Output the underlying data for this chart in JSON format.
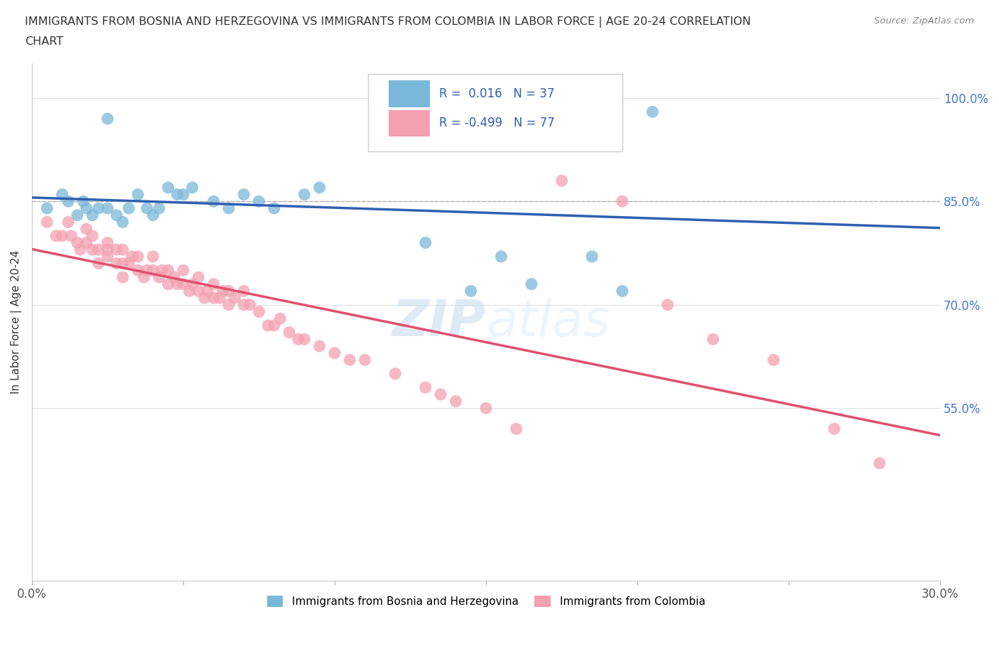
{
  "title_line1": "IMMIGRANTS FROM BOSNIA AND HERZEGOVINA VS IMMIGRANTS FROM COLOMBIA IN LABOR FORCE | AGE 20-24 CORRELATION",
  "title_line2": "CHART",
  "source": "Source: ZipAtlas.com",
  "ylabel": "In Labor Force | Age 20-24",
  "xlim": [
    0.0,
    0.3
  ],
  "ylim": [
    0.3,
    1.05
  ],
  "bosnia_color": "#7ab8d9",
  "colombia_color": "#f4a0b0",
  "bosnia_line_color": "#3060b0",
  "colombia_line_color": "#e05070",
  "grid_color": "#e0e0e0",
  "background_color": "#ffffff",
  "r_bosnia": 0.016,
  "n_bosnia": 37,
  "r_colombia": -0.499,
  "n_colombia": 77,
  "bosnia_x": [
    0.025,
    0.125,
    0.175,
    0.205,
    0.005,
    0.01,
    0.012,
    0.015,
    0.017,
    0.018,
    0.02,
    0.022,
    0.025,
    0.028,
    0.03,
    0.032,
    0.035,
    0.038,
    0.04,
    0.042,
    0.045,
    0.048,
    0.05,
    0.053,
    0.06,
    0.065,
    0.07,
    0.075,
    0.08,
    0.09,
    0.095,
    0.13,
    0.145,
    0.155,
    0.165,
    0.185,
    0.195
  ],
  "bosnia_y": [
    0.97,
    0.98,
    0.97,
    0.98,
    0.84,
    0.86,
    0.85,
    0.83,
    0.85,
    0.84,
    0.83,
    0.84,
    0.84,
    0.83,
    0.82,
    0.84,
    0.86,
    0.84,
    0.83,
    0.84,
    0.87,
    0.86,
    0.86,
    0.87,
    0.85,
    0.84,
    0.86,
    0.85,
    0.84,
    0.86,
    0.87,
    0.79,
    0.72,
    0.77,
    0.73,
    0.77,
    0.72
  ],
  "colombia_x": [
    0.005,
    0.008,
    0.01,
    0.012,
    0.013,
    0.015,
    0.016,
    0.018,
    0.018,
    0.02,
    0.02,
    0.022,
    0.022,
    0.025,
    0.025,
    0.025,
    0.028,
    0.028,
    0.03,
    0.03,
    0.03,
    0.032,
    0.033,
    0.035,
    0.035,
    0.037,
    0.038,
    0.04,
    0.04,
    0.042,
    0.043,
    0.045,
    0.045,
    0.047,
    0.048,
    0.05,
    0.05,
    0.052,
    0.053,
    0.055,
    0.055,
    0.057,
    0.058,
    0.06,
    0.06,
    0.062,
    0.063,
    0.065,
    0.065,
    0.067,
    0.07,
    0.07,
    0.072,
    0.075,
    0.078,
    0.08,
    0.082,
    0.085,
    0.088,
    0.09,
    0.095,
    0.1,
    0.105,
    0.11,
    0.12,
    0.13,
    0.135,
    0.14,
    0.15,
    0.16,
    0.175,
    0.195,
    0.21,
    0.225,
    0.245,
    0.265,
    0.28
  ],
  "colombia_y": [
    0.82,
    0.8,
    0.8,
    0.82,
    0.8,
    0.79,
    0.78,
    0.79,
    0.81,
    0.8,
    0.78,
    0.78,
    0.76,
    0.78,
    0.77,
    0.79,
    0.76,
    0.78,
    0.78,
    0.76,
    0.74,
    0.76,
    0.77,
    0.75,
    0.77,
    0.74,
    0.75,
    0.75,
    0.77,
    0.74,
    0.75,
    0.73,
    0.75,
    0.74,
    0.73,
    0.73,
    0.75,
    0.72,
    0.73,
    0.72,
    0.74,
    0.71,
    0.72,
    0.71,
    0.73,
    0.71,
    0.72,
    0.7,
    0.72,
    0.71,
    0.7,
    0.72,
    0.7,
    0.69,
    0.67,
    0.67,
    0.68,
    0.66,
    0.65,
    0.65,
    0.64,
    0.63,
    0.62,
    0.62,
    0.6,
    0.58,
    0.57,
    0.56,
    0.55,
    0.52,
    0.88,
    0.85,
    0.7,
    0.65,
    0.62,
    0.52,
    0.47
  ],
  "watermark_zip": "ZIP",
  "watermark_atlas": "atlas",
  "hline_y": 0.85,
  "hline_color": "#b0b0b0",
  "legend_r_color": "#3060b0",
  "legend_n_color": "#3060b0"
}
